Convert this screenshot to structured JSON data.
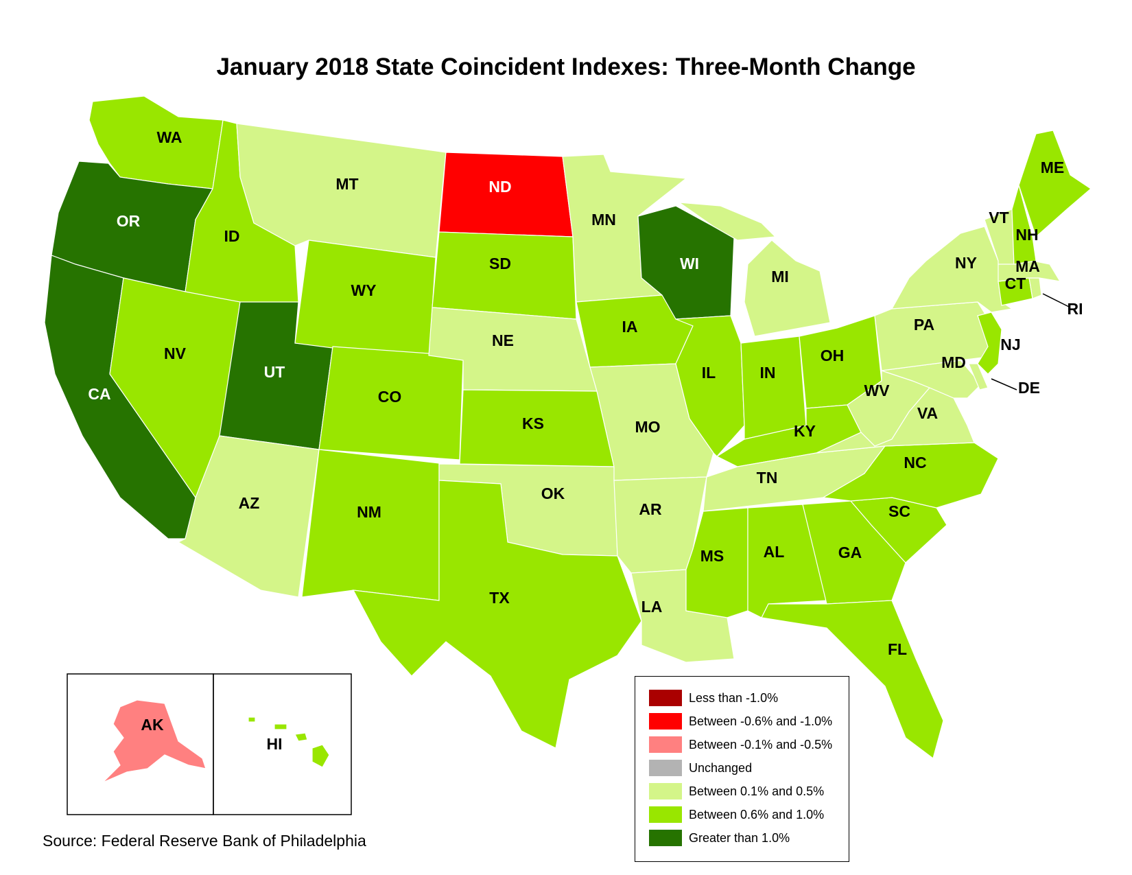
{
  "title": "January 2018 State Coincident Indexes: Three-Month Change",
  "source": "Source: Federal Reserve Bank of Philadelphia",
  "colors": {
    "lt_neg1": "#aa0000",
    "neg06_neg1": "#ff0000",
    "neg01_neg05": "#ff8080",
    "unchanged": "#b3b3b3",
    "pos01_05": "#d4f589",
    "pos06_1": "#99e600",
    "gt1": "#267300"
  },
  "legend": [
    {
      "key": "lt_neg1",
      "label": "Less than -1.0%"
    },
    {
      "key": "neg06_neg1",
      "label": "Between -0.6% and -1.0%"
    },
    {
      "key": "neg01_neg05",
      "label": "Between -0.1% and -0.5%"
    },
    {
      "key": "unchanged",
      "label": "Unchanged"
    },
    {
      "key": "pos01_05",
      "label": "Between 0.1% and 0.5%"
    },
    {
      "key": "pos06_1",
      "label": "Between 0.6% and 1.0%"
    },
    {
      "key": "gt1",
      "label": "Greater than 1.0%"
    }
  ],
  "states": {
    "WA": "pos06_1",
    "OR": "gt1",
    "CA": "gt1",
    "ID": "pos06_1",
    "NV": "pos06_1",
    "UT": "gt1",
    "AZ": "pos01_05",
    "MT": "pos01_05",
    "WY": "pos06_1",
    "CO": "pos06_1",
    "NM": "pos06_1",
    "ND": "neg06_neg1",
    "SD": "pos06_1",
    "NE": "pos01_05",
    "KS": "pos06_1",
    "OK": "pos01_05",
    "TX": "pos06_1",
    "MN": "pos01_05",
    "IA": "pos06_1",
    "MO": "pos01_05",
    "AR": "pos01_05",
    "LA": "pos01_05",
    "WI": "gt1",
    "IL": "pos06_1",
    "MI": "pos01_05",
    "IN": "pos06_1",
    "OH": "pos06_1",
    "KY": "pos06_1",
    "TN": "pos01_05",
    "MS": "pos06_1",
    "AL": "pos06_1",
    "GA": "pos06_1",
    "FL": "pos06_1",
    "SC": "pos06_1",
    "NC": "pos06_1",
    "VA": "pos01_05",
    "WV": "pos01_05",
    "PA": "pos01_05",
    "NY": "pos01_05",
    "MD": "pos01_05",
    "DE": "pos01_05",
    "NJ": "pos06_1",
    "CT": "pos06_1",
    "RI": "pos01_05",
    "MA": "pos01_05",
    "VT": "pos01_05",
    "NH": "pos06_1",
    "ME": "pos06_1",
    "AK": "neg01_neg05",
    "HI": "pos06_1"
  }
}
